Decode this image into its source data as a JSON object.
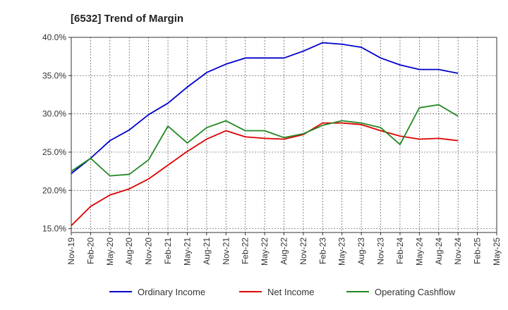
{
  "chart_data": {
    "type": "line",
    "title": "[6532]  Trend of Margin",
    "x": [
      "Nov-19",
      "Feb-20",
      "May-20",
      "Aug-20",
      "Nov-20",
      "Feb-21",
      "May-21",
      "Aug-21",
      "Nov-21",
      "Feb-22",
      "May-22",
      "Aug-22",
      "Nov-22",
      "Feb-23",
      "May-23",
      "Aug-23",
      "Nov-23",
      "Feb-24",
      "May-24",
      "Aug-24",
      "Nov-24",
      "Feb-25",
      "May-25"
    ],
    "ylim": [
      14.5,
      40.0
    ],
    "yticks": [
      15.0,
      20.0,
      25.0,
      30.0,
      35.0,
      40.0
    ],
    "ytick_labels": [
      "15.0%",
      "20.0%",
      "25.0%",
      "30.0%",
      "35.0%",
      "40.0%"
    ],
    "grid": true,
    "legend_position": "bottom",
    "series": [
      {
        "name": "Ordinary Income",
        "color": "#0000cc",
        "values": [
          22.2,
          24.2,
          26.5,
          27.9,
          29.9,
          31.4,
          33.5,
          35.4,
          36.5,
          37.3,
          37.3,
          37.3,
          38.2,
          39.3,
          39.1,
          38.7,
          37.3,
          36.4,
          35.8,
          35.8,
          35.3,
          null,
          null
        ]
      },
      {
        "name": "Net Income",
        "color": "#dd0000",
        "values": [
          15.4,
          17.9,
          19.4,
          20.2,
          21.5,
          23.3,
          25.1,
          26.7,
          27.8,
          27.0,
          26.8,
          26.7,
          27.3,
          28.8,
          28.8,
          28.6,
          27.8,
          27.1,
          26.7,
          26.8,
          26.5,
          null,
          null
        ]
      },
      {
        "name": "Operating Cashflow",
        "color": "#228822",
        "values": [
          22.5,
          24.2,
          21.9,
          22.1,
          24.0,
          28.4,
          26.2,
          28.2,
          29.1,
          27.8,
          27.8,
          26.9,
          27.4,
          28.5,
          29.1,
          28.8,
          28.2,
          26.0,
          30.8,
          31.2,
          29.7,
          null,
          null
        ]
      }
    ]
  }
}
